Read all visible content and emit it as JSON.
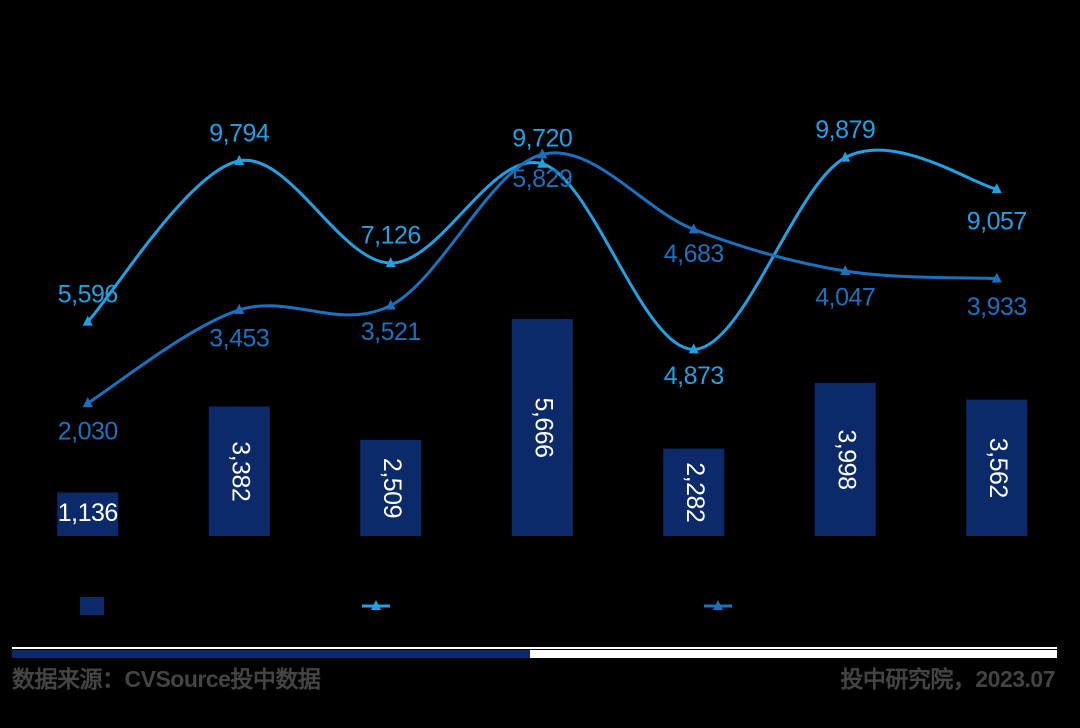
{
  "chart_data": {
    "type": "bar-line",
    "categories": [
      null,
      null,
      null,
      null,
      null,
      null,
      null
    ],
    "ylim": [
      0,
      10000
    ],
    "y2lim": [
      0,
      5850
    ],
    "series": [
      {
        "type": "bar",
        "color": "#0c2a6a",
        "values": [
          1136,
          3382,
          2509,
          5666,
          2282,
          3998,
          3562
        ],
        "value_labels": [
          "1,136",
          "3,382",
          "2,509",
          "5,666",
          "2,282",
          "3,998",
          "3,562"
        ]
      },
      {
        "type": "line",
        "color": "#1fa2e4",
        "values": [
          5596,
          9794,
          7126,
          9720,
          4873,
          9879,
          9057
        ],
        "value_labels": [
          "5,596",
          "9,794",
          "7,126",
          "9,720",
          "4,873",
          "9,879",
          "9,057"
        ]
      },
      {
        "type": "line",
        "axis": "y2",
        "color": "#1a72bf",
        "values": [
          2030,
          3453,
          3521,
          5829,
          4683,
          4047,
          3933
        ],
        "value_labels": [
          "2,030",
          "3,453",
          "3,521",
          "5,829",
          "4,683",
          "4,047",
          "3,933"
        ]
      }
    ]
  },
  "footer": {
    "source": "数据来源：CVSource投中数据",
    "credit": "投中研究院，2023.07"
  }
}
